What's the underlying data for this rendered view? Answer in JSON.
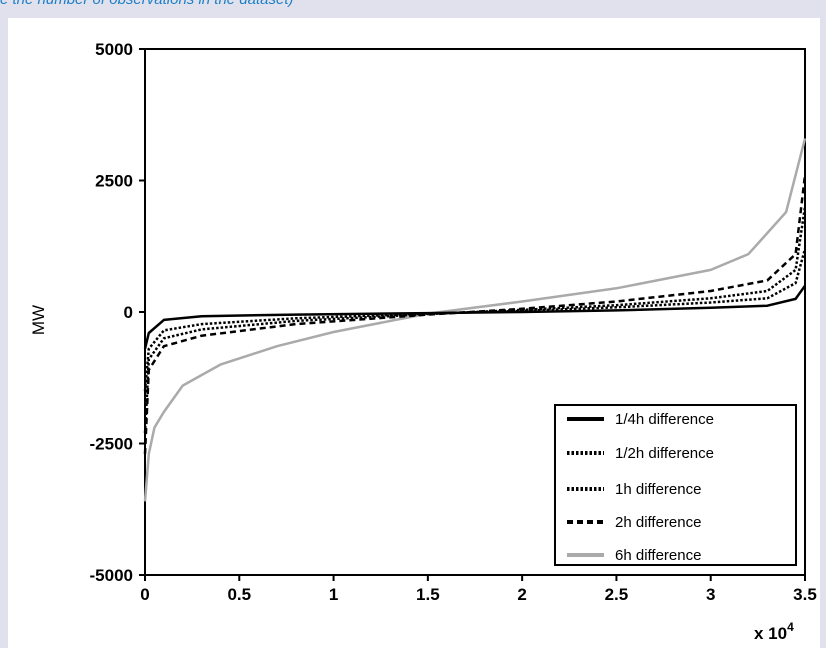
{
  "caption": "e the number of observations in the dataset)",
  "chart_data": {
    "type": "line",
    "title": "",
    "xlabel": "",
    "ylabel": "MW",
    "x_multiplier_label": "x 10",
    "x_multiplier_exponent": "4",
    "xlim": [
      0,
      3.5
    ],
    "ylim": [
      -5000,
      5000
    ],
    "x_ticks": [
      {
        "value": 0,
        "label": "0"
      },
      {
        "value": 0.5,
        "label": "0.5"
      },
      {
        "value": 1,
        "label": "1"
      },
      {
        "value": 1.5,
        "label": "1.5"
      },
      {
        "value": 2,
        "label": "2"
      },
      {
        "value": 2.5,
        "label": "2.5"
      },
      {
        "value": 3,
        "label": "3"
      },
      {
        "value": 3.5,
        "label": "3.5"
      }
    ],
    "y_ticks": [
      {
        "value": 5000,
        "label": "5000"
      },
      {
        "value": 2500,
        "label": "2500"
      },
      {
        "value": 0,
        "label": "0"
      },
      {
        "value": -2500,
        "label": "-2500"
      },
      {
        "value": -5000,
        "label": "-5000"
      }
    ],
    "grid": false,
    "legend_position": "bottom-right",
    "series": [
      {
        "name": "1/4h difference",
        "color": "#000000",
        "dash": "solid",
        "x": [
          0,
          0.02,
          0.1,
          0.3,
          0.8,
          1.5,
          2.0,
          2.5,
          3.0,
          3.3,
          3.45,
          3.5
        ],
        "y": [
          -700,
          -400,
          -150,
          -80,
          -50,
          -20,
          0,
          30,
          80,
          120,
          250,
          500
        ]
      },
      {
        "name": "1/2h difference",
        "color": "#000000",
        "dash": "dotted",
        "x": [
          0,
          0.02,
          0.1,
          0.3,
          0.8,
          1.5,
          2.0,
          2.5,
          3.0,
          3.3,
          3.45,
          3.5
        ],
        "y": [
          -1500,
          -700,
          -350,
          -230,
          -120,
          -30,
          20,
          90,
          180,
          260,
          550,
          1200
        ]
      },
      {
        "name": "1h difference",
        "color": "#000000",
        "dash": "dotted",
        "x": [
          0,
          0.02,
          0.1,
          0.3,
          0.8,
          1.5,
          2.0,
          2.5,
          3.0,
          3.3,
          3.45,
          3.5
        ],
        "y": [
          -2300,
          -900,
          -500,
          -330,
          -170,
          -40,
          40,
          130,
          260,
          400,
          800,
          2000
        ]
      },
      {
        "name": "2h difference",
        "color": "#000000",
        "dash": "dashed",
        "x": [
          0,
          0.02,
          0.1,
          0.3,
          0.8,
          1.5,
          2.0,
          2.5,
          3.0,
          3.3,
          3.45,
          3.5
        ],
        "y": [
          -2700,
          -1100,
          -650,
          -450,
          -230,
          -50,
          60,
          200,
          400,
          600,
          1100,
          2600
        ]
      },
      {
        "name": "6h difference",
        "color": "#aaaaaa",
        "dash": "solid",
        "x": [
          0,
          0.02,
          0.05,
          0.1,
          0.2,
          0.4,
          0.7,
          1.0,
          1.5,
          2.0,
          2.5,
          3.0,
          3.2,
          3.4,
          3.5
        ],
        "y": [
          -3600,
          -2700,
          -2200,
          -1900,
          -1400,
          -1000,
          -650,
          -380,
          -30,
          200,
          450,
          800,
          1100,
          1900,
          3300
        ]
      }
    ]
  }
}
